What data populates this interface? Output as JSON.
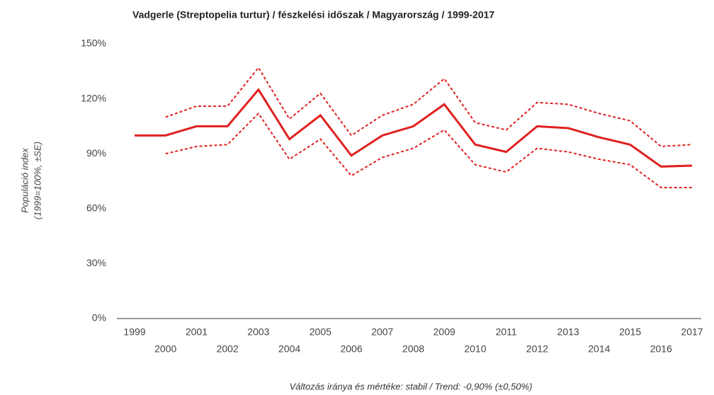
{
  "chart_data": {
    "type": "line",
    "title": "Vadgerle (Streptopelia turtur) / fészkelési időszak / Magyarország / 1999-2017",
    "ylabel": [
      "Populáció index",
      "(1999=100%, ±SE)"
    ],
    "note": "Változás iránya és mértéke: stabil / Trend: -0,90% (±0,50%)",
    "categories": [
      "1999",
      "2000",
      "2001",
      "2002",
      "2003",
      "2004",
      "2005",
      "2006",
      "2007",
      "2008",
      "2009",
      "2010",
      "2011",
      "2012",
      "2013",
      "2014",
      "2015",
      "2016",
      "2017"
    ],
    "series": [
      {
        "color": "#e02020",
        "dashed": false,
        "values": [
          100,
          100,
          105,
          105,
          125,
          98,
          111,
          89,
          100,
          105,
          117,
          95,
          91,
          105,
          104,
          99,
          95,
          83,
          83.5
        ]
      },
      {
        "color": "#e02020",
        "dashed": true,
        "values": [
          null,
          110,
          116,
          116,
          137,
          109,
          123,
          100,
          111,
          117,
          131,
          107,
          103,
          118,
          117,
          112,
          108,
          94,
          95
        ]
      },
      {
        "color": "#e02020",
        "dashed": true,
        "values": [
          null,
          90,
          94,
          95,
          112,
          87,
          98,
          78,
          88,
          93,
          103,
          84,
          80,
          93,
          91,
          87,
          84,
          71.5,
          71.5
        ]
      }
    ],
    "ylim": [
      0,
      150
    ],
    "yticks": [
      {
        "value": 0,
        "label": "0%"
      },
      {
        "value": 30,
        "label": "30%"
      },
      {
        "value": 60,
        "label": "60%"
      },
      {
        "value": 90,
        "label": "90%"
      },
      {
        "value": 120,
        "label": "120%"
      },
      {
        "value": 150,
        "label": "150%"
      }
    ],
    "grid": false
  }
}
